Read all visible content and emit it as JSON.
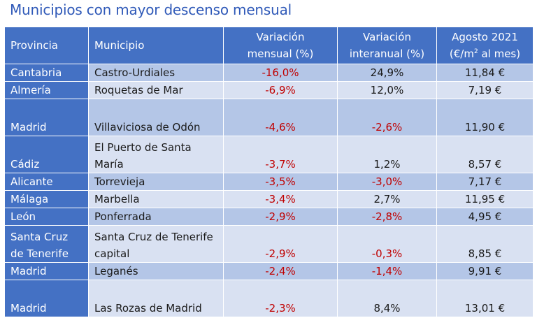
{
  "title": "Municipios con mayor descenso mensual",
  "headers": {
    "provincia": "Provincia",
    "municipio": "Municipio",
    "var_mensual_1": "Variación",
    "var_mensual_2": "mensual (%)",
    "var_interanual_1": "Variación",
    "var_interanual_2": "interanual (%)",
    "agosto_1": "Agosto 2021",
    "agosto_2a": "(€/m",
    "agosto_sup": "2",
    "agosto_2b": " al mes)"
  },
  "rows": [
    {
      "provincia": "Cantabria",
      "municipio": "Castro-Urdiales",
      "var_mensual": "-16,0%",
      "var_interanual": "24,9%",
      "precio": "11,84 €"
    },
    {
      "provincia": "Almería",
      "municipio": "Roquetas de Mar",
      "var_mensual": "-6,9%",
      "var_interanual": "12,0%",
      "precio": "7,19 €"
    },
    {
      "provincia": "Madrid",
      "municipio": "Villaviciosa de Odón",
      "var_mensual": "-4,6%",
      "var_interanual": "-2,6%",
      "precio": "11,90 €"
    },
    {
      "provincia": "Cádiz",
      "municipio": "El Puerto de Santa María",
      "var_mensual": "-3,7%",
      "var_interanual": "1,2%",
      "precio": "8,57 €"
    },
    {
      "provincia": "Alicante",
      "municipio": "Torrevieja",
      "var_mensual": "-3,5%",
      "var_interanual": "-3,0%",
      "precio": "7,17 €"
    },
    {
      "provincia": "Málaga",
      "municipio": "Marbella",
      "var_mensual": "-3,4%",
      "var_interanual": "2,7%",
      "precio": "11,95 €"
    },
    {
      "provincia": "León",
      "municipio": "Ponferrada",
      "var_mensual": "-2,9%",
      "var_interanual": "-2,8%",
      "precio": "4,95 €"
    },
    {
      "provincia": "Santa Cruz de Tenerife",
      "municipio": "Santa Cruz de Tenerife capital",
      "var_mensual": "-2,9%",
      "var_interanual": "-0,3%",
      "precio": "8,85 €"
    },
    {
      "provincia": "Madrid",
      "municipio": "Leganés",
      "var_mensual": "-2,4%",
      "var_interanual": "-1,4%",
      "precio": "9,91 €"
    },
    {
      "provincia": "Madrid",
      "municipio": "Las Rozas de Madrid",
      "var_mensual": "-2,3%",
      "var_interanual": "8,4%",
      "precio": "13,01 €"
    }
  ]
}
